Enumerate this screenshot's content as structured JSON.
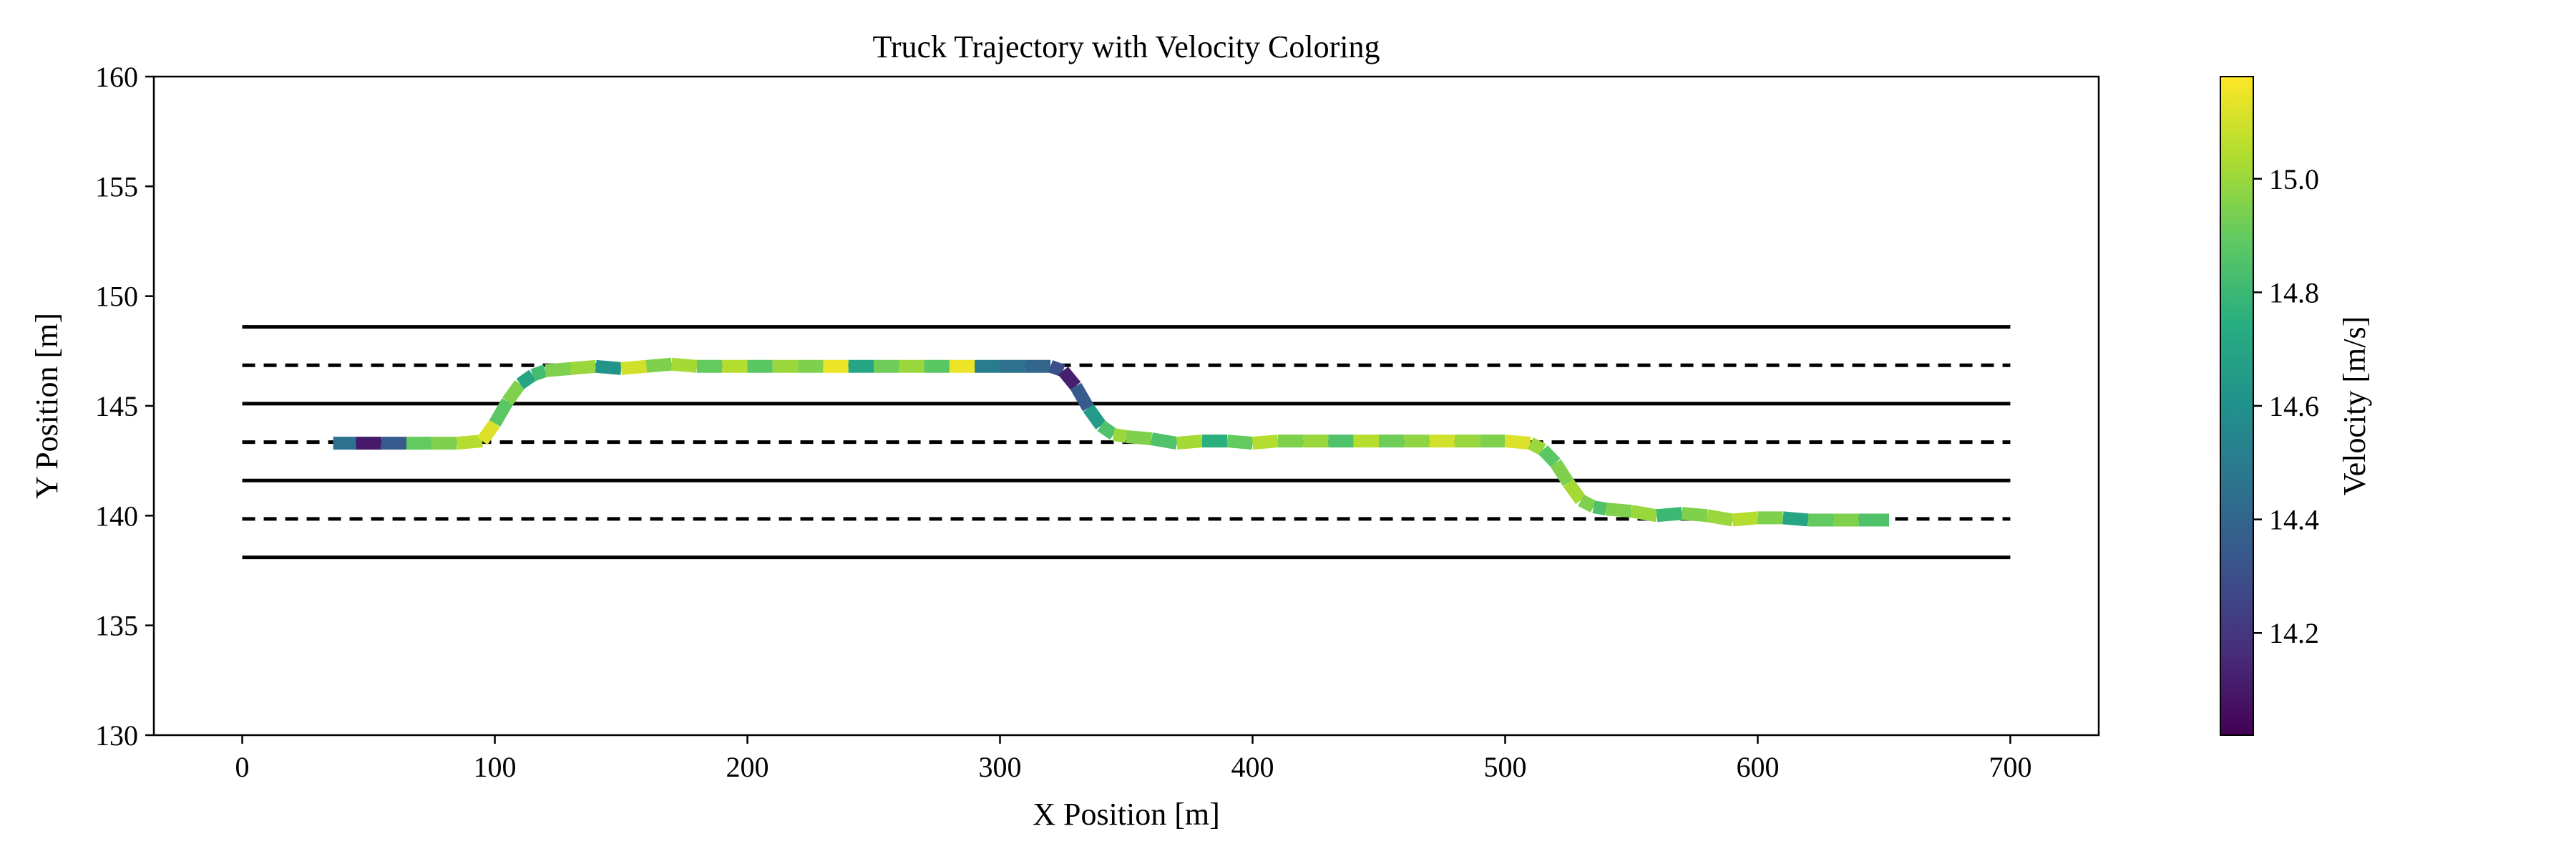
{
  "chart_data": {
    "type": "line",
    "title": "Truck Trajectory with Velocity Coloring",
    "xlabel": "X Position [m]",
    "ylabel": "Y Position [m]",
    "xlim": [
      -35,
      735
    ],
    "ylim": [
      130,
      160
    ],
    "x_ticks": [
      0,
      100,
      200,
      300,
      400,
      500,
      600,
      700
    ],
    "x_tick_labels": [
      "0",
      "100",
      "200",
      "300",
      "400",
      "500",
      "600",
      "700"
    ],
    "y_ticks": [
      130,
      135,
      140,
      145,
      150,
      155,
      160
    ],
    "y_tick_labels": [
      "130",
      "135",
      "140",
      "145",
      "150",
      "155",
      "160"
    ],
    "grid": false,
    "colorbar": {
      "label": "Velocity [m/s]",
      "min": 14.02,
      "max": 15.18,
      "colormap": "viridis",
      "ticks": [
        14.2,
        14.4,
        14.6,
        14.8,
        15.0
      ],
      "tick_labels": [
        "14.2",
        "14.4",
        "14.6",
        "14.8",
        "15.0"
      ]
    },
    "lane_lines": [
      {
        "y": 148.6,
        "style": "solid",
        "x_range": [
          0,
          700
        ]
      },
      {
        "y": 146.85,
        "style": "dashed",
        "x_range": [
          0,
          700
        ]
      },
      {
        "y": 145.1,
        "style": "solid",
        "x_range": [
          0,
          700
        ]
      },
      {
        "y": 143.35,
        "style": "dashed",
        "x_range": [
          0,
          700
        ]
      },
      {
        "y": 141.6,
        "style": "solid",
        "x_range": [
          0,
          700
        ]
      },
      {
        "y": 139.85,
        "style": "dashed",
        "x_range": [
          0,
          700
        ]
      },
      {
        "y": 138.1,
        "style": "solid",
        "x_range": [
          0,
          700
        ]
      }
    ],
    "trajectory": {
      "x": [
        36,
        45,
        55,
        65,
        75,
        85,
        95,
        100,
        105,
        110,
        115,
        120,
        130,
        140,
        150,
        160,
        170,
        180,
        190,
        200,
        210,
        220,
        230,
        240,
        250,
        260,
        270,
        280,
        290,
        300,
        310,
        320,
        325,
        330,
        335,
        340,
        345,
        350,
        360,
        370,
        380,
        390,
        400,
        410,
        420,
        430,
        440,
        450,
        460,
        470,
        480,
        490,
        500,
        510,
        515,
        520,
        525,
        530,
        535,
        540,
        550,
        560,
        570,
        580,
        590,
        600,
        610,
        620,
        630,
        640,
        652
      ],
      "y": [
        143.3,
        143.3,
        143.3,
        143.3,
        143.3,
        143.3,
        143.4,
        144.2,
        145.2,
        146.0,
        146.4,
        146.6,
        146.7,
        146.8,
        146.7,
        146.8,
        146.9,
        146.8,
        146.8,
        146.8,
        146.8,
        146.8,
        146.8,
        146.8,
        146.8,
        146.8,
        146.8,
        146.8,
        146.8,
        146.8,
        146.8,
        146.8,
        146.6,
        145.9,
        144.9,
        144.1,
        143.7,
        143.6,
        143.5,
        143.3,
        143.4,
        143.4,
        143.3,
        143.4,
        143.4,
        143.4,
        143.4,
        143.4,
        143.4,
        143.4,
        143.4,
        143.4,
        143.4,
        143.3,
        143.0,
        142.4,
        141.5,
        140.7,
        140.4,
        140.3,
        140.2,
        140.0,
        140.1,
        140.0,
        139.8,
        139.9,
        139.9,
        139.8,
        139.8,
        139.8,
        139.8
      ],
      "velocity": [
        14.45,
        14.1,
        14.35,
        14.9,
        14.95,
        15.05,
        15.12,
        14.88,
        14.95,
        14.7,
        14.82,
        14.95,
        15.0,
        14.62,
        15.1,
        14.95,
        15.02,
        14.9,
        15.05,
        14.88,
        15.0,
        14.95,
        15.15,
        14.7,
        14.92,
        15.0,
        14.88,
        15.15,
        14.5,
        14.45,
        14.4,
        14.3,
        14.12,
        14.35,
        14.65,
        14.85,
        15.0,
        14.95,
        14.85,
        15.02,
        14.75,
        14.9,
        15.05,
        14.95,
        15.0,
        14.85,
        15.05,
        14.92,
        14.98,
        15.1,
        15.0,
        14.95,
        15.12,
        15.0,
        14.88,
        14.95,
        15.02,
        14.95,
        14.85,
        14.95,
        15.0,
        14.8,
        14.95,
        15.0,
        15.05,
        14.95,
        14.7,
        14.9,
        14.95,
        14.85,
        15.0
      ]
    }
  }
}
